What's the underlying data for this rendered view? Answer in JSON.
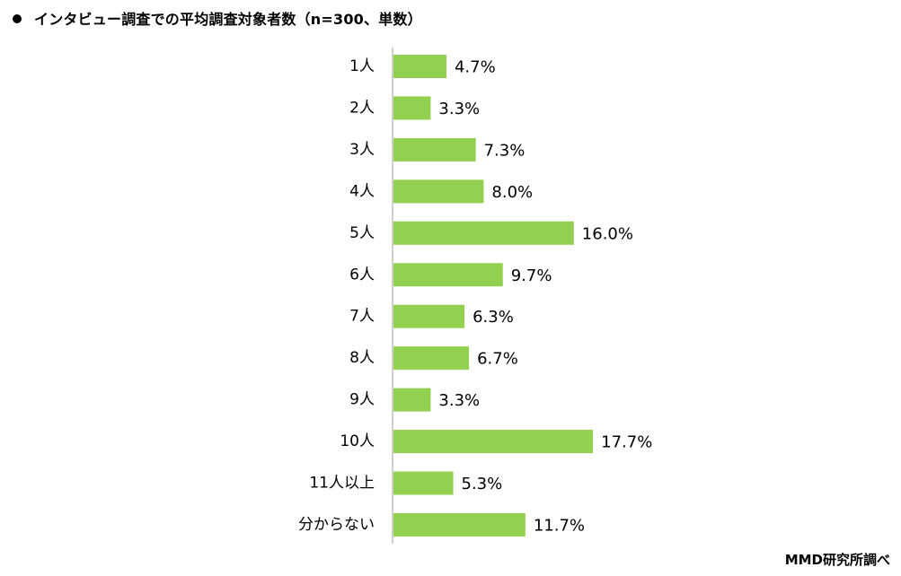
{
  "chart_data": {
    "type": "bar",
    "orientation": "horizontal",
    "title": "インタビュー調査での平均調査対象者数（n=300、単数）",
    "categories": [
      "1人",
      "2人",
      "3人",
      "4人",
      "5人",
      "6人",
      "7人",
      "8人",
      "9人",
      "10人",
      "11人以上",
      "分からない"
    ],
    "values": [
      4.7,
      3.3,
      7.3,
      8.0,
      16.0,
      9.7,
      6.3,
      6.7,
      3.3,
      17.7,
      5.3,
      11.7
    ],
    "value_labels": [
      "4.7%",
      "3.3%",
      "7.3%",
      "8.0%",
      "16.0%",
      "9.7%",
      "6.3%",
      "6.7%",
      "3.3%",
      "17.7%",
      "5.3%",
      "11.7%"
    ],
    "unit": "%",
    "xlim": [
      0,
      50
    ],
    "grid": false,
    "bar_color": "#92d050",
    "axis_color": "#bfbfbf"
  },
  "source": "MMD研究所調べ"
}
